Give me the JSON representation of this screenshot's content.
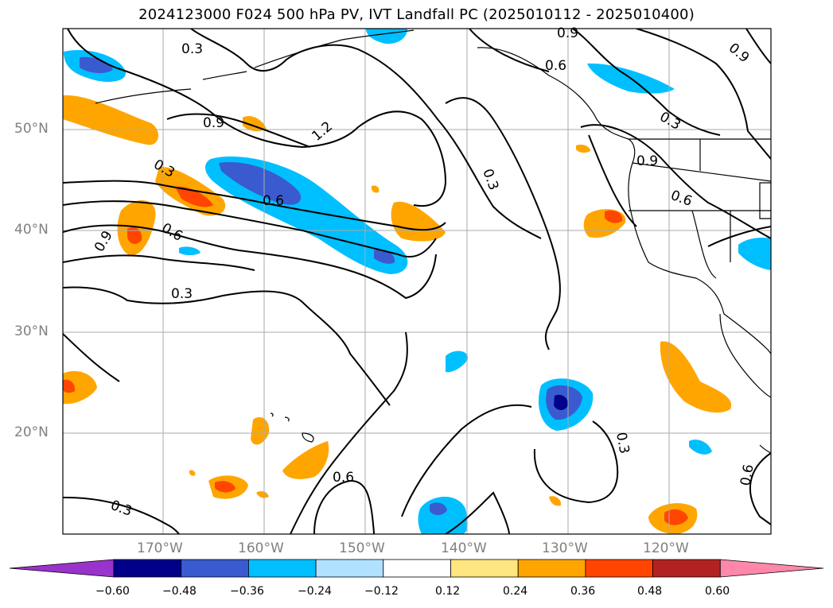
{
  "title": "2024123000 F024 500 hPa PV, IVT Landfall PC (2025010112 - 2025010400)",
  "map": {
    "lon_range": [
      -180,
      -110
    ],
    "lat_range": [
      10,
      60
    ],
    "lat_labels": [
      "50°N",
      "40°N",
      "30°N",
      "20°N"
    ],
    "lon_labels": [
      "170°W",
      "160°W",
      "150°W",
      "140°W",
      "130°W",
      "120°W"
    ],
    "contour_labels": [
      "0.3",
      "0.9",
      "0.6",
      "0.3",
      "0.9",
      "1.2",
      "0.6",
      "0.6",
      "0.9",
      "0.3",
      "0.3",
      "0.3",
      "0.6",
      "0.3",
      "0.6",
      "0.9",
      "0.3",
      "0.9",
      "0.6",
      "0.3",
      "0.3"
    ]
  },
  "colorbar": {
    "colors": [
      "#9933cc",
      "#00008b",
      "#3a5bd0",
      "#00bfff",
      "#b0e2ff",
      "#ffffff",
      "#ffe680",
      "#ffa500",
      "#ff4500",
      "#b22222",
      "#ff88aa"
    ],
    "ticks": [
      "−0.60",
      "−0.48",
      "−0.36",
      "−0.24",
      "−0.12",
      "0.12",
      "0.24",
      "0.36",
      "0.48",
      "0.60"
    ]
  }
}
